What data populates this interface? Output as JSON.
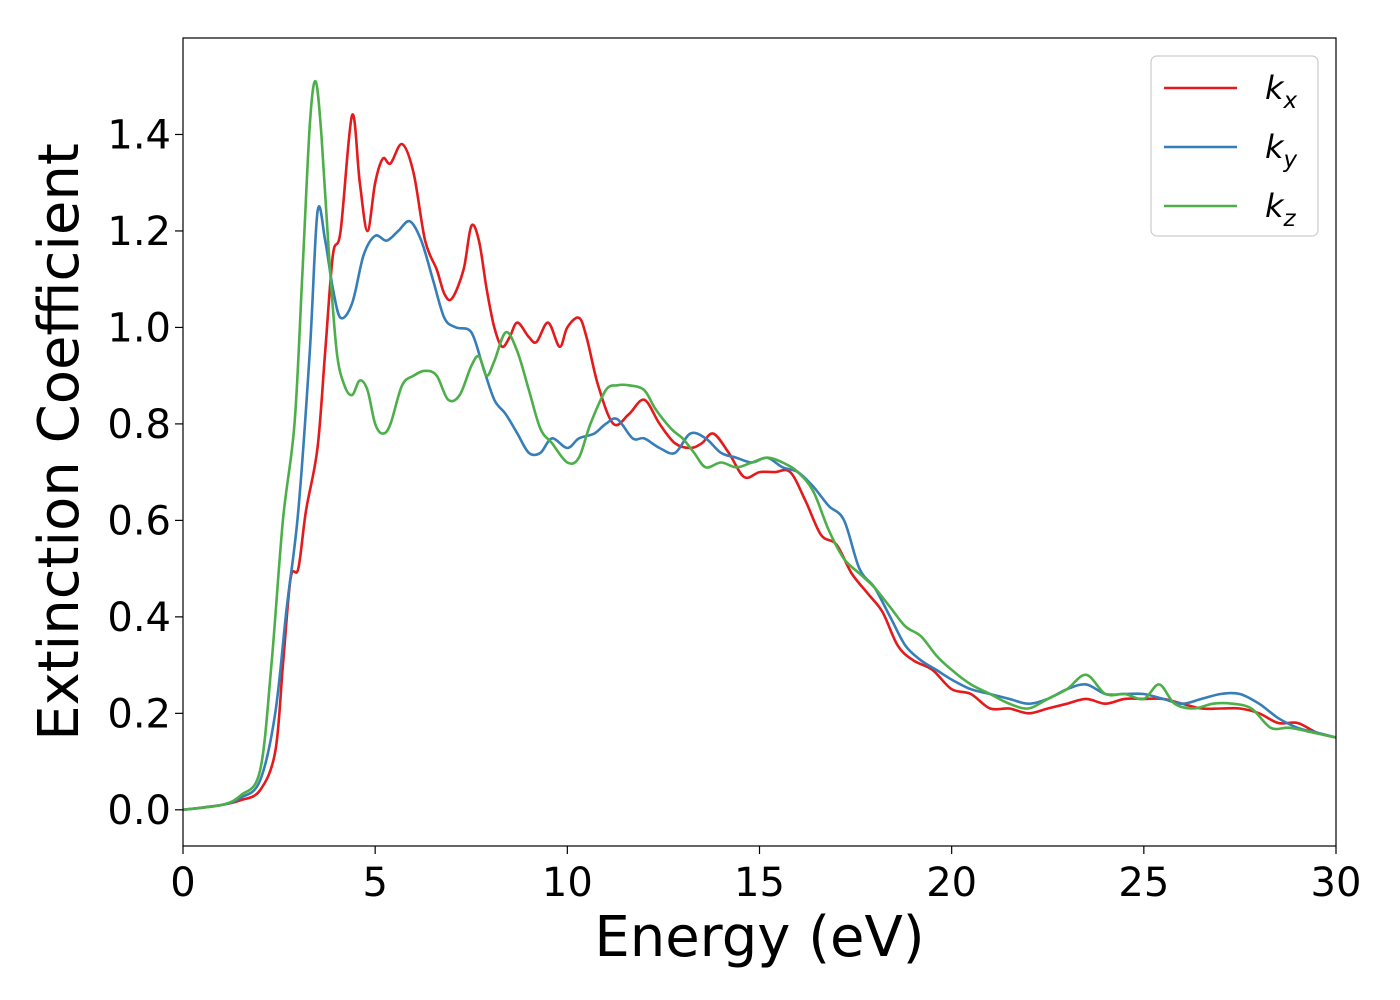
{
  "chart_data": {
    "type": "line",
    "title": "",
    "xlabel": "Energy (eV)",
    "ylabel": "Extinction Coefficient",
    "xlim": [
      0,
      30
    ],
    "ylim": [
      -0.075,
      1.6
    ],
    "x_ticks": [
      "0",
      "5",
      "10",
      "15",
      "20",
      "25",
      "30"
    ],
    "y_ticks": [
      "0.0",
      "0.2",
      "0.4",
      "0.6",
      "0.8",
      "1.0",
      "1.2",
      "1.4"
    ],
    "grid": false,
    "legend_position": "top-right",
    "series": [
      {
        "name": "k",
        "subscript": "x",
        "color": "#e41a1c",
        "points": [
          [
            0,
            0
          ],
          [
            1,
            0.01
          ],
          [
            1.5,
            0.02
          ],
          [
            2,
            0.04
          ],
          [
            2.4,
            0.12
          ],
          [
            2.6,
            0.3
          ],
          [
            2.8,
            0.48
          ],
          [
            3,
            0.5
          ],
          [
            3.2,
            0.62
          ],
          [
            3.5,
            0.75
          ],
          [
            3.7,
            0.95
          ],
          [
            3.9,
            1.15
          ],
          [
            4.1,
            1.2
          ],
          [
            4.4,
            1.44
          ],
          [
            4.6,
            1.3
          ],
          [
            4.8,
            1.2
          ],
          [
            5,
            1.3
          ],
          [
            5.2,
            1.35
          ],
          [
            5.4,
            1.34
          ],
          [
            5.7,
            1.38
          ],
          [
            6,
            1.32
          ],
          [
            6.3,
            1.18
          ],
          [
            6.6,
            1.12
          ],
          [
            6.8,
            1.07
          ],
          [
            7,
            1.06
          ],
          [
            7.3,
            1.12
          ],
          [
            7.5,
            1.21
          ],
          [
            7.7,
            1.18
          ],
          [
            7.9,
            1.08
          ],
          [
            8.1,
            1.0
          ],
          [
            8.3,
            0.96
          ],
          [
            8.5,
            0.98
          ],
          [
            8.7,
            1.01
          ],
          [
            9,
            0.98
          ],
          [
            9.2,
            0.97
          ],
          [
            9.5,
            1.01
          ],
          [
            9.8,
            0.96
          ],
          [
            10,
            1.0
          ],
          [
            10.3,
            1.02
          ],
          [
            10.5,
            0.98
          ],
          [
            10.8,
            0.88
          ],
          [
            11.2,
            0.8
          ],
          [
            11.6,
            0.82
          ],
          [
            12,
            0.85
          ],
          [
            12.4,
            0.8
          ],
          [
            12.8,
            0.76
          ],
          [
            13.2,
            0.75
          ],
          [
            13.5,
            0.76
          ],
          [
            13.8,
            0.78
          ],
          [
            14.2,
            0.74
          ],
          [
            14.6,
            0.69
          ],
          [
            15,
            0.7
          ],
          [
            15.4,
            0.7
          ],
          [
            15.8,
            0.7
          ],
          [
            16.2,
            0.64
          ],
          [
            16.6,
            0.57
          ],
          [
            17,
            0.55
          ],
          [
            17.4,
            0.49
          ],
          [
            17.8,
            0.45
          ],
          [
            18.2,
            0.41
          ],
          [
            18.6,
            0.34
          ],
          [
            19,
            0.31
          ],
          [
            19.5,
            0.29
          ],
          [
            20,
            0.25
          ],
          [
            20.5,
            0.24
          ],
          [
            21,
            0.21
          ],
          [
            21.5,
            0.21
          ],
          [
            22,
            0.2
          ],
          [
            22.5,
            0.21
          ],
          [
            23,
            0.22
          ],
          [
            23.5,
            0.23
          ],
          [
            24,
            0.22
          ],
          [
            24.5,
            0.23
          ],
          [
            25,
            0.23
          ],
          [
            25.5,
            0.23
          ],
          [
            26,
            0.22
          ],
          [
            26.5,
            0.21
          ],
          [
            27,
            0.21
          ],
          [
            27.5,
            0.21
          ],
          [
            28,
            0.2
          ],
          [
            28.5,
            0.18
          ],
          [
            29,
            0.18
          ],
          [
            29.5,
            0.16
          ],
          [
            30,
            0.15
          ]
        ]
      },
      {
        "name": "k",
        "subscript": "y",
        "color": "#377eb8",
        "points": [
          [
            0,
            0
          ],
          [
            1,
            0.01
          ],
          [
            1.5,
            0.025
          ],
          [
            2,
            0.06
          ],
          [
            2.4,
            0.2
          ],
          [
            2.7,
            0.42
          ],
          [
            3,
            0.62
          ],
          [
            3.3,
            0.95
          ],
          [
            3.5,
            1.24
          ],
          [
            3.7,
            1.18
          ],
          [
            3.9,
            1.08
          ],
          [
            4.1,
            1.02
          ],
          [
            4.4,
            1.05
          ],
          [
            4.7,
            1.15
          ],
          [
            5,
            1.19
          ],
          [
            5.3,
            1.18
          ],
          [
            5.6,
            1.2
          ],
          [
            5.9,
            1.22
          ],
          [
            6.2,
            1.18
          ],
          [
            6.5,
            1.1
          ],
          [
            6.8,
            1.02
          ],
          [
            7.1,
            1.0
          ],
          [
            7.5,
            0.99
          ],
          [
            7.8,
            0.92
          ],
          [
            8.1,
            0.85
          ],
          [
            8.4,
            0.82
          ],
          [
            8.7,
            0.78
          ],
          [
            9,
            0.74
          ],
          [
            9.3,
            0.74
          ],
          [
            9.6,
            0.77
          ],
          [
            10,
            0.75
          ],
          [
            10.3,
            0.77
          ],
          [
            10.7,
            0.78
          ],
          [
            11,
            0.8
          ],
          [
            11.3,
            0.81
          ],
          [
            11.7,
            0.77
          ],
          [
            12,
            0.77
          ],
          [
            12.4,
            0.75
          ],
          [
            12.8,
            0.74
          ],
          [
            13.2,
            0.78
          ],
          [
            13.6,
            0.77
          ],
          [
            14,
            0.74
          ],
          [
            14.4,
            0.73
          ],
          [
            14.8,
            0.72
          ],
          [
            15.2,
            0.73
          ],
          [
            15.6,
            0.71
          ],
          [
            16,
            0.7
          ],
          [
            16.4,
            0.67
          ],
          [
            16.8,
            0.63
          ],
          [
            17.2,
            0.6
          ],
          [
            17.6,
            0.5
          ],
          [
            18,
            0.46
          ],
          [
            18.4,
            0.4
          ],
          [
            18.8,
            0.34
          ],
          [
            19.2,
            0.31
          ],
          [
            19.6,
            0.29
          ],
          [
            20,
            0.27
          ],
          [
            20.5,
            0.25
          ],
          [
            21,
            0.24
          ],
          [
            21.5,
            0.23
          ],
          [
            22,
            0.22
          ],
          [
            22.5,
            0.23
          ],
          [
            23,
            0.25
          ],
          [
            23.5,
            0.26
          ],
          [
            24,
            0.24
          ],
          [
            24.5,
            0.24
          ],
          [
            25,
            0.24
          ],
          [
            25.5,
            0.23
          ],
          [
            26,
            0.22
          ],
          [
            26.5,
            0.23
          ],
          [
            27,
            0.24
          ],
          [
            27.5,
            0.24
          ],
          [
            28,
            0.22
          ],
          [
            28.5,
            0.19
          ],
          [
            29,
            0.17
          ],
          [
            29.5,
            0.16
          ],
          [
            30,
            0.15
          ]
        ]
      },
      {
        "name": "k",
        "subscript": "z",
        "color": "#4daf4a",
        "points": [
          [
            0,
            0
          ],
          [
            1,
            0.01
          ],
          [
            1.5,
            0.03
          ],
          [
            2,
            0.08
          ],
          [
            2.3,
            0.3
          ],
          [
            2.6,
            0.6
          ],
          [
            2.9,
            0.8
          ],
          [
            3.1,
            1.1
          ],
          [
            3.3,
            1.42
          ],
          [
            3.45,
            1.51
          ],
          [
            3.6,
            1.4
          ],
          [
            3.8,
            1.15
          ],
          [
            4,
            0.95
          ],
          [
            4.2,
            0.88
          ],
          [
            4.4,
            0.86
          ],
          [
            4.6,
            0.89
          ],
          [
            4.8,
            0.87
          ],
          [
            5,
            0.8
          ],
          [
            5.2,
            0.78
          ],
          [
            5.4,
            0.8
          ],
          [
            5.7,
            0.88
          ],
          [
            6,
            0.9
          ],
          [
            6.3,
            0.91
          ],
          [
            6.6,
            0.9
          ],
          [
            6.9,
            0.85
          ],
          [
            7.2,
            0.86
          ],
          [
            7.5,
            0.92
          ],
          [
            7.7,
            0.94
          ],
          [
            7.9,
            0.9
          ],
          [
            8.1,
            0.93
          ],
          [
            8.4,
            0.99
          ],
          [
            8.7,
            0.95
          ],
          [
            9,
            0.87
          ],
          [
            9.3,
            0.79
          ],
          [
            9.6,
            0.76
          ],
          [
            10,
            0.72
          ],
          [
            10.3,
            0.73
          ],
          [
            10.6,
            0.8
          ],
          [
            11,
            0.87
          ],
          [
            11.3,
            0.88
          ],
          [
            11.6,
            0.88
          ],
          [
            12,
            0.87
          ],
          [
            12.3,
            0.83
          ],
          [
            12.7,
            0.79
          ],
          [
            13,
            0.77
          ],
          [
            13.3,
            0.74
          ],
          [
            13.6,
            0.71
          ],
          [
            14,
            0.72
          ],
          [
            14.4,
            0.71
          ],
          [
            14.8,
            0.72
          ],
          [
            15.2,
            0.73
          ],
          [
            15.6,
            0.72
          ],
          [
            16,
            0.7
          ],
          [
            16.4,
            0.66
          ],
          [
            16.8,
            0.58
          ],
          [
            17.2,
            0.52
          ],
          [
            17.6,
            0.49
          ],
          [
            18,
            0.46
          ],
          [
            18.4,
            0.42
          ],
          [
            18.8,
            0.38
          ],
          [
            19.2,
            0.36
          ],
          [
            19.6,
            0.32
          ],
          [
            20,
            0.29
          ],
          [
            20.5,
            0.26
          ],
          [
            21,
            0.24
          ],
          [
            21.5,
            0.22
          ],
          [
            22,
            0.21
          ],
          [
            22.5,
            0.23
          ],
          [
            23,
            0.25
          ],
          [
            23.5,
            0.28
          ],
          [
            24,
            0.24
          ],
          [
            24.5,
            0.24
          ],
          [
            25,
            0.23
          ],
          [
            25.4,
            0.26
          ],
          [
            25.8,
            0.22
          ],
          [
            26.3,
            0.21
          ],
          [
            26.8,
            0.22
          ],
          [
            27.3,
            0.22
          ],
          [
            27.8,
            0.21
          ],
          [
            28.3,
            0.17
          ],
          [
            28.8,
            0.17
          ],
          [
            29.4,
            0.16
          ],
          [
            30,
            0.15
          ]
        ]
      }
    ]
  }
}
